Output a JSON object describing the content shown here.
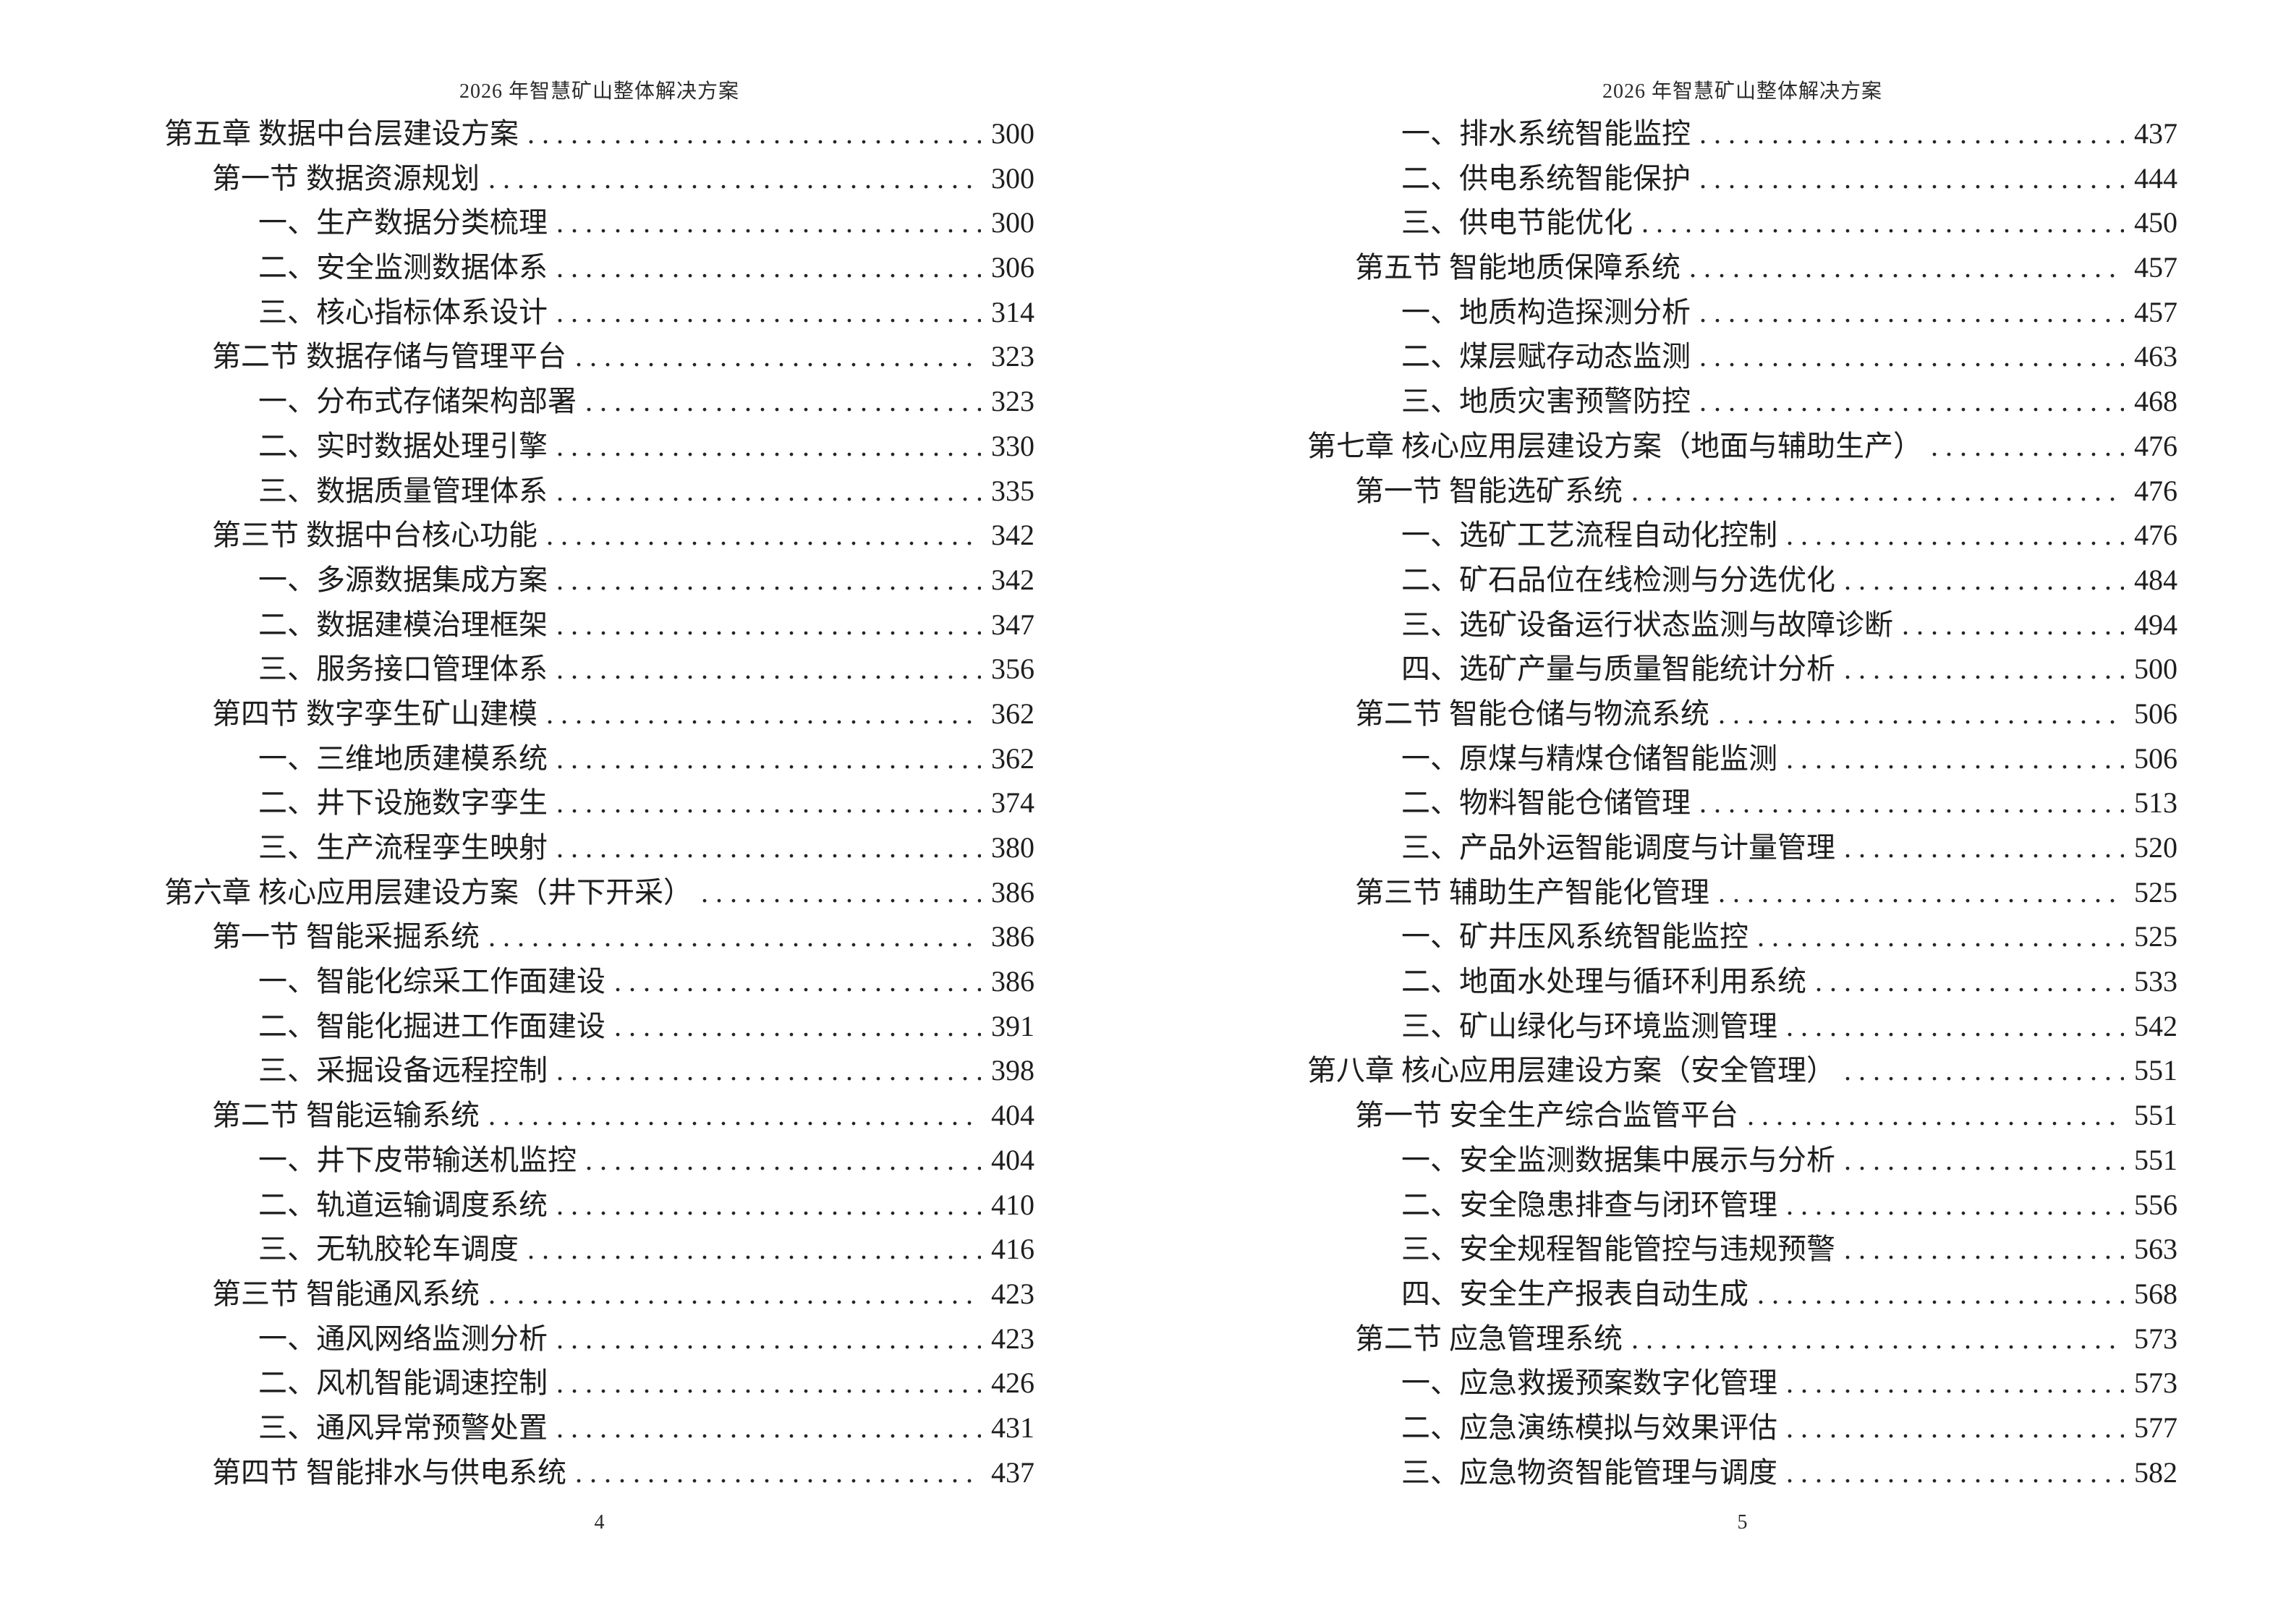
{
  "pages": [
    {
      "header": "2026 年智慧矿山整体解决方案",
      "footer_page_number": "4",
      "entries": [
        {
          "level": 1,
          "text": "第五章 数据中台层建设方案",
          "page": "300"
        },
        {
          "level": 2,
          "text": "第一节 数据资源规划",
          "page": "300"
        },
        {
          "level": 3,
          "text": "一、生产数据分类梳理",
          "page": "300"
        },
        {
          "level": 3,
          "text": "二、安全监测数据体系",
          "page": "306"
        },
        {
          "level": 3,
          "text": "三、核心指标体系设计",
          "page": "314"
        },
        {
          "level": 2,
          "text": "第二节 数据存储与管理平台",
          "page": "323"
        },
        {
          "level": 3,
          "text": "一、分布式存储架构部署",
          "page": "323"
        },
        {
          "level": 3,
          "text": "二、实时数据处理引擎",
          "page": "330"
        },
        {
          "level": 3,
          "text": "三、数据质量管理体系",
          "page": "335"
        },
        {
          "level": 2,
          "text": "第三节 数据中台核心功能",
          "page": "342"
        },
        {
          "level": 3,
          "text": "一、多源数据集成方案",
          "page": "342"
        },
        {
          "level": 3,
          "text": "二、数据建模治理框架",
          "page": "347"
        },
        {
          "level": 3,
          "text": "三、服务接口管理体系",
          "page": "356"
        },
        {
          "level": 2,
          "text": "第四节 数字孪生矿山建模",
          "page": "362"
        },
        {
          "level": 3,
          "text": "一、三维地质建模系统",
          "page": "362"
        },
        {
          "level": 3,
          "text": "二、井下设施数字孪生",
          "page": "374"
        },
        {
          "level": 3,
          "text": "三、生产流程孪生映射",
          "page": "380"
        },
        {
          "level": 1,
          "text": "第六章 核心应用层建设方案（井下开采）",
          "page": "386"
        },
        {
          "level": 2,
          "text": "第一节 智能采掘系统",
          "page": "386"
        },
        {
          "level": 3,
          "text": "一、智能化综采工作面建设",
          "page": "386"
        },
        {
          "level": 3,
          "text": "二、智能化掘进工作面建设",
          "page": "391"
        },
        {
          "level": 3,
          "text": "三、采掘设备远程控制",
          "page": "398"
        },
        {
          "level": 2,
          "text": "第二节 智能运输系统",
          "page": "404"
        },
        {
          "level": 3,
          "text": "一、井下皮带输送机监控",
          "page": "404"
        },
        {
          "level": 3,
          "text": "二、轨道运输调度系统",
          "page": "410"
        },
        {
          "level": 3,
          "text": "三、无轨胶轮车调度",
          "page": "416"
        },
        {
          "level": 2,
          "text": "第三节 智能通风系统",
          "page": "423"
        },
        {
          "level": 3,
          "text": "一、通风网络监测分析",
          "page": "423"
        },
        {
          "level": 3,
          "text": "二、风机智能调速控制",
          "page": "426"
        },
        {
          "level": 3,
          "text": "三、通风异常预警处置",
          "page": "431"
        },
        {
          "level": 2,
          "text": "第四节 智能排水与供电系统",
          "page": "437"
        }
      ]
    },
    {
      "header": "2026 年智慧矿山整体解决方案",
      "footer_page_number": "5",
      "entries": [
        {
          "level": 3,
          "text": "一、排水系统智能监控",
          "page": "437"
        },
        {
          "level": 3,
          "text": "二、供电系统智能保护",
          "page": "444"
        },
        {
          "level": 3,
          "text": "三、供电节能优化",
          "page": "450"
        },
        {
          "level": 2,
          "text": "第五节 智能地质保障系统",
          "page": "457"
        },
        {
          "level": 3,
          "text": "一、地质构造探测分析",
          "page": "457"
        },
        {
          "level": 3,
          "text": "二、煤层赋存动态监测",
          "page": "463"
        },
        {
          "level": 3,
          "text": "三、地质灾害预警防控",
          "page": "468"
        },
        {
          "level": 1,
          "text": "第七章 核心应用层建设方案（地面与辅助生产）",
          "page": "476"
        },
        {
          "level": 2,
          "text": "第一节 智能选矿系统",
          "page": "476"
        },
        {
          "level": 3,
          "text": "一、选矿工艺流程自动化控制",
          "page": "476"
        },
        {
          "level": 3,
          "text": "二、矿石品位在线检测与分选优化",
          "page": "484"
        },
        {
          "level": 3,
          "text": "三、选矿设备运行状态监测与故障诊断",
          "page": "494"
        },
        {
          "level": 3,
          "text": "四、选矿产量与质量智能统计分析",
          "page": "500"
        },
        {
          "level": 2,
          "text": "第二节 智能仓储与物流系统",
          "page": "506"
        },
        {
          "level": 3,
          "text": "一、原煤与精煤仓储智能监测",
          "page": "506"
        },
        {
          "level": 3,
          "text": "二、物料智能仓储管理",
          "page": "513"
        },
        {
          "level": 3,
          "text": "三、产品外运智能调度与计量管理",
          "page": "520"
        },
        {
          "level": 2,
          "text": "第三节 辅助生产智能化管理",
          "page": "525"
        },
        {
          "level": 3,
          "text": "一、矿井压风系统智能监控",
          "page": "525"
        },
        {
          "level": 3,
          "text": "二、地面水处理与循环利用系统",
          "page": "533"
        },
        {
          "level": 3,
          "text": "三、矿山绿化与环境监测管理",
          "page": "542"
        },
        {
          "level": 1,
          "text": "第八章 核心应用层建设方案（安全管理）",
          "page": "551"
        },
        {
          "level": 2,
          "text": "第一节 安全生产综合监管平台",
          "page": "551"
        },
        {
          "level": 3,
          "text": "一、安全监测数据集中展示与分析",
          "page": "551"
        },
        {
          "level": 3,
          "text": "二、安全隐患排查与闭环管理",
          "page": "556"
        },
        {
          "level": 3,
          "text": "三、安全规程智能管控与违规预警",
          "page": "563"
        },
        {
          "level": 3,
          "text": "四、安全生产报表自动生成",
          "page": "568"
        },
        {
          "level": 2,
          "text": "第二节 应急管理系统",
          "page": "573"
        },
        {
          "level": 3,
          "text": "一、应急救援预案数字化管理",
          "page": "573"
        },
        {
          "level": 3,
          "text": "二、应急演练模拟与效果评估",
          "page": "577"
        },
        {
          "level": 3,
          "text": "三、应急物资智能管理与调度",
          "page": "582"
        }
      ]
    }
  ]
}
